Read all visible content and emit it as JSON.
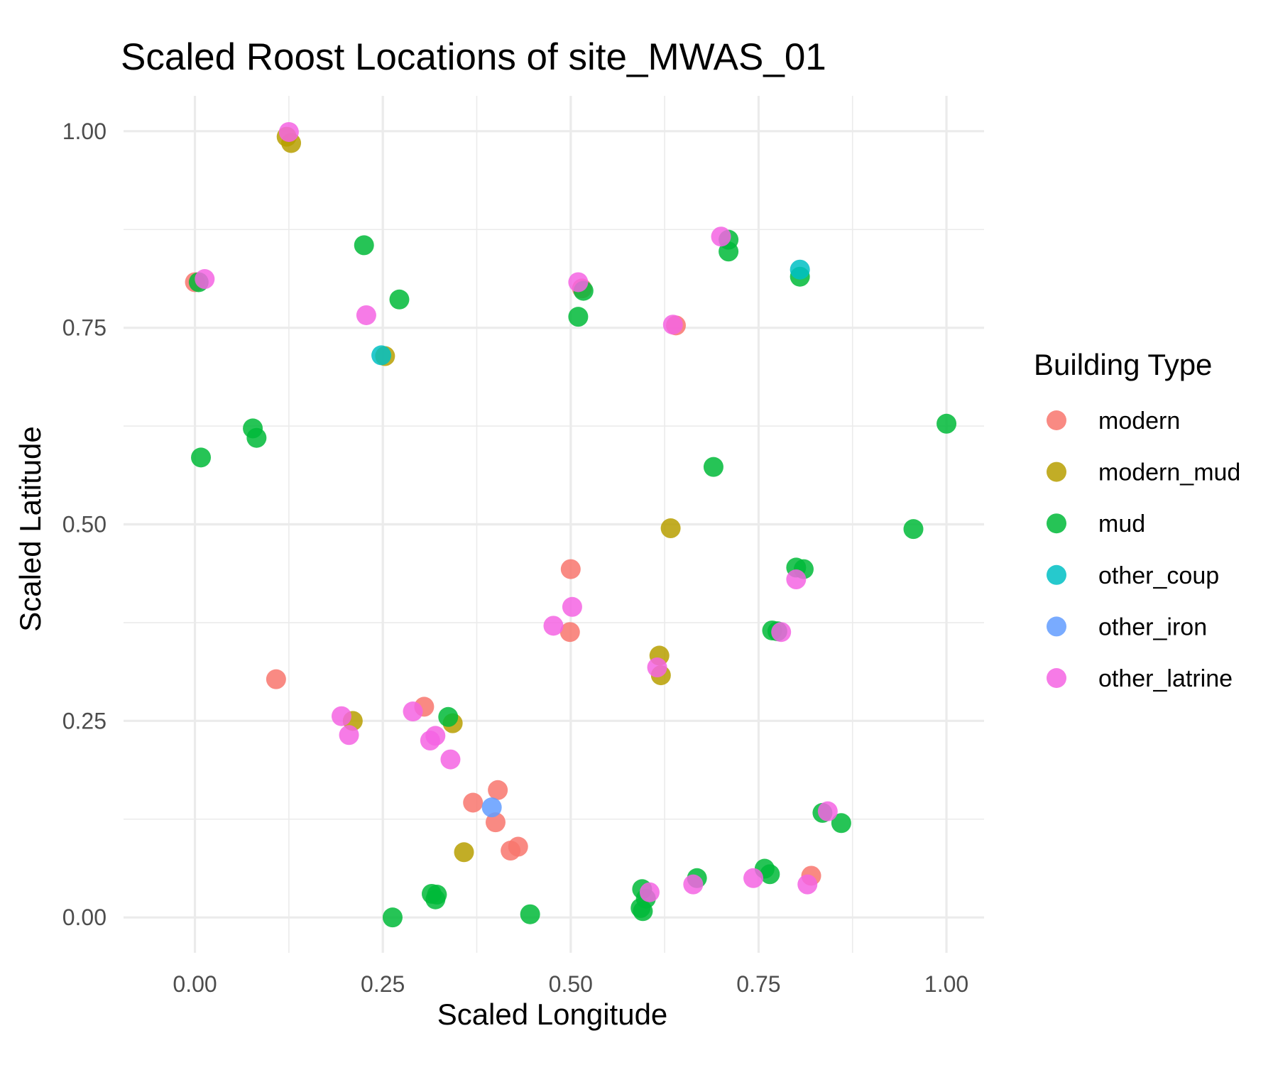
{
  "chart_data": {
    "type": "scatter",
    "title": "Scaled Roost Locations of site_MWAS_01",
    "xlabel": "Scaled Longitude",
    "ylabel": "Scaled Latitude",
    "xlim": [
      -0.095,
      1.05
    ],
    "ylim": [
      -0.045,
      1.045
    ],
    "xticks": [
      0.0,
      0.25,
      0.5,
      0.75,
      1.0
    ],
    "xtick_labels": [
      "0.00",
      "0.25",
      "0.50",
      "0.75",
      "1.00"
    ],
    "yticks": [
      0.0,
      0.25,
      0.5,
      0.75,
      1.0
    ],
    "ytick_labels": [
      "0.00",
      "0.25",
      "0.50",
      "0.75",
      "1.00"
    ],
    "grid": true,
    "legend_title": "Building Type",
    "legend_position": "right",
    "series": [
      {
        "name": "modern",
        "color": "#F8766D",
        "points": [
          [
            0.0,
            0.808
          ],
          [
            0.108,
            0.303
          ],
          [
            0.305,
            0.268
          ],
          [
            0.37,
            0.146
          ],
          [
            0.4,
            0.121
          ],
          [
            0.403,
            0.162
          ],
          [
            0.42,
            0.085
          ],
          [
            0.43,
            0.09
          ],
          [
            0.5,
            0.443
          ],
          [
            0.499,
            0.363
          ],
          [
            0.515,
            0.8
          ],
          [
            0.64,
            0.753
          ],
          [
            0.82,
            0.053
          ]
        ]
      },
      {
        "name": "modern_mud",
        "color": "#B79F00",
        "points": [
          [
            0.122,
            0.993
          ],
          [
            0.128,
            0.985
          ],
          [
            0.21,
            0.25
          ],
          [
            0.253,
            0.714
          ],
          [
            0.343,
            0.247
          ],
          [
            0.358,
            0.083
          ],
          [
            0.618,
            0.333
          ],
          [
            0.62,
            0.308
          ],
          [
            0.633,
            0.495
          ]
        ]
      },
      {
        "name": "mud",
        "color": "#00BA38",
        "points": [
          [
            0.005,
            0.808
          ],
          [
            0.008,
            0.585
          ],
          [
            0.077,
            0.622
          ],
          [
            0.082,
            0.61
          ],
          [
            0.225,
            0.855
          ],
          [
            0.272,
            0.786
          ],
          [
            0.263,
            0.0
          ],
          [
            0.315,
            0.03
          ],
          [
            0.32,
            0.023
          ],
          [
            0.322,
            0.029
          ],
          [
            0.337,
            0.255
          ],
          [
            0.446,
            0.004
          ],
          [
            0.51,
            0.764
          ],
          [
            0.517,
            0.797
          ],
          [
            0.593,
            0.012
          ],
          [
            0.595,
            0.036
          ],
          [
            0.596,
            0.008
          ],
          [
            0.6,
            0.024
          ],
          [
            0.668,
            0.05
          ],
          [
            0.69,
            0.573
          ],
          [
            0.71,
            0.862
          ],
          [
            0.71,
            0.847
          ],
          [
            0.758,
            0.062
          ],
          [
            0.765,
            0.055
          ],
          [
            0.768,
            0.365
          ],
          [
            0.775,
            0.364
          ],
          [
            0.8,
            0.445
          ],
          [
            0.81,
            0.443
          ],
          [
            0.805,
            0.815
          ],
          [
            0.835,
            0.133
          ],
          [
            0.86,
            0.12
          ],
          [
            0.956,
            0.494
          ],
          [
            1.0,
            0.628
          ]
        ]
      },
      {
        "name": "other_coup",
        "color": "#00BFC4",
        "points": [
          [
            0.248,
            0.715
          ],
          [
            0.805,
            0.824
          ]
        ]
      },
      {
        "name": "other_iron",
        "color": "#619CFF",
        "points": [
          [
            0.395,
            0.14
          ]
        ]
      },
      {
        "name": "other_latrine",
        "color": "#F564E3",
        "points": [
          [
            0.125,
            0.999
          ],
          [
            0.013,
            0.812
          ],
          [
            0.228,
            0.766
          ],
          [
            0.195,
            0.256
          ],
          [
            0.205,
            0.232
          ],
          [
            0.29,
            0.262
          ],
          [
            0.313,
            0.225
          ],
          [
            0.32,
            0.231
          ],
          [
            0.34,
            0.201
          ],
          [
            0.477,
            0.371
          ],
          [
            0.502,
            0.395
          ],
          [
            0.51,
            0.808
          ],
          [
            0.605,
            0.032
          ],
          [
            0.615,
            0.318
          ],
          [
            0.636,
            0.754
          ],
          [
            0.663,
            0.042
          ],
          [
            0.7,
            0.866
          ],
          [
            0.743,
            0.05
          ],
          [
            0.78,
            0.363
          ],
          [
            0.8,
            0.43
          ],
          [
            0.815,
            0.042
          ],
          [
            0.842,
            0.135
          ]
        ]
      }
    ]
  }
}
